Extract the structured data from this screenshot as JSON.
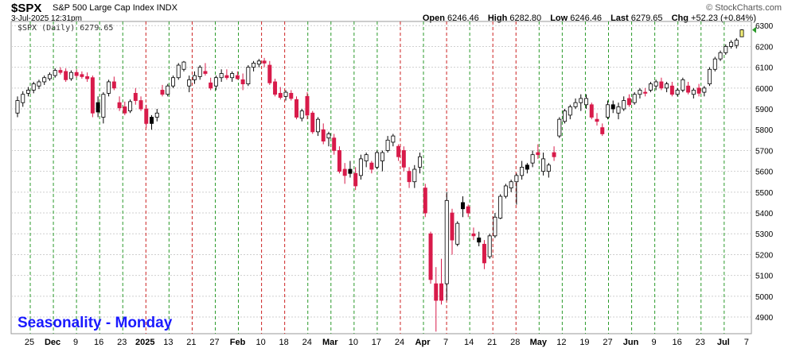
{
  "header": {
    "symbol": "$SPX",
    "description": "S&P 500 Large Cap Index INDX",
    "datetime": "3-Jul-2025 12:31pm",
    "brand": "© StockCharts.com",
    "open_label": "Open",
    "open": "6246.46",
    "high_label": "High",
    "high": "6282.80",
    "low_label": "Low",
    "low": "6246.46",
    "last_label": "Last",
    "last": "6279.65",
    "chg_label": "Chg",
    "chg": "+52.23 (+0.84%)",
    "legend": "$SPX (Daily) 6279.65"
  },
  "annotation": "Seasonality - Monday",
  "colors": {
    "up_candle_fill": "#ffffff",
    "down_candle_fill": "#d81b4a",
    "prior_close_up_fill": "#000000",
    "last_candle_fill": "#f5f07a",
    "monday_green_line": "#2a9a2a",
    "monday_red_line": "#cc2222",
    "annotation_text": "#1a1aff"
  },
  "chart_data": {
    "type": "candlestick",
    "title": "$SPX (Daily) 6279.65",
    "ylim": [
      4820,
      6320
    ],
    "y_ticks": [
      4900,
      5000,
      5100,
      5200,
      5300,
      5400,
      5500,
      5600,
      5700,
      5800,
      5900,
      6000,
      6100,
      6200,
      6300
    ],
    "x_labels": [
      "25",
      "Dec",
      "9",
      "16",
      "23",
      "2025",
      "13",
      "21",
      "27",
      "Feb",
      "10",
      "18",
      "24",
      "Mar",
      "10",
      "17",
      "24",
      "Apr",
      "7",
      "14",
      "21",
      "28",
      "May",
      "12",
      "19",
      "27",
      "Jun",
      "9",
      "16",
      "23",
      "Jul",
      "7"
    ],
    "x_label_bold": [
      "Dec",
      "2025",
      "Feb",
      "Mar",
      "Apr",
      "May",
      "Jun",
      "Jul"
    ],
    "monday_seasonality": [
      "green",
      "green",
      "green",
      "green",
      "green",
      "red",
      "green",
      "red",
      "green",
      "green",
      "red",
      "red",
      "green",
      "green",
      "green",
      "green",
      "red",
      "green",
      "red",
      "green",
      "red",
      "red",
      "green",
      "green",
      "green",
      "green",
      "green",
      "green",
      "green",
      "green",
      "green"
    ],
    "candles": [
      {
        "o": 5880,
        "h": 5960,
        "l": 5860,
        "c": 5940,
        "t": "up"
      },
      {
        "o": 5930,
        "h": 5985,
        "l": 5910,
        "c": 5970,
        "t": "up"
      },
      {
        "o": 5975,
        "h": 6005,
        "l": 5960,
        "c": 5990,
        "t": "up"
      },
      {
        "o": 5990,
        "h": 6030,
        "l": 5975,
        "c": 6020,
        "t": "up"
      },
      {
        "o": 6010,
        "h": 6040,
        "l": 5995,
        "c": 6030,
        "t": "up"
      },
      {
        "o": 6030,
        "h": 6060,
        "l": 6015,
        "c": 6050,
        "t": "up"
      },
      {
        "o": 6045,
        "h": 6075,
        "l": 6035,
        "c": 6065,
        "t": "up"
      },
      {
        "o": 6060,
        "h": 6095,
        "l": 6050,
        "c": 6085,
        "t": "up"
      },
      {
        "o": 6085,
        "h": 6100,
        "l": 6065,
        "c": 6075,
        "t": "down"
      },
      {
        "o": 6080,
        "h": 6095,
        "l": 6030,
        "c": 6040,
        "t": "down"
      },
      {
        "o": 6045,
        "h": 6085,
        "l": 6035,
        "c": 6075,
        "t": "up"
      },
      {
        "o": 6075,
        "h": 6090,
        "l": 6050,
        "c": 6060,
        "t": "down"
      },
      {
        "o": 6065,
        "h": 6080,
        "l": 6045,
        "c": 6055,
        "t": "down"
      },
      {
        "o": 6055,
        "h": 6075,
        "l": 6030,
        "c": 6045,
        "t": "down"
      },
      {
        "o": 6050,
        "h": 6060,
        "l": 5860,
        "c": 5880,
        "t": "down"
      },
      {
        "o": 5885,
        "h": 5960,
        "l": 5860,
        "c": 5930,
        "t": "prior_up"
      },
      {
        "o": 5860,
        "h": 5980,
        "l": 5830,
        "c": 5970,
        "t": "up"
      },
      {
        "o": 5975,
        "h": 6040,
        "l": 5960,
        "c": 6030,
        "t": "up"
      },
      {
        "o": 6030,
        "h": 6055,
        "l": 5990,
        "c": 6000,
        "t": "down"
      },
      {
        "o": 5930,
        "h": 5960,
        "l": 5890,
        "c": 5905,
        "t": "down"
      },
      {
        "o": 5910,
        "h": 5935,
        "l": 5870,
        "c": 5880,
        "t": "down"
      },
      {
        "o": 5890,
        "h": 5945,
        "l": 5880,
        "c": 5935,
        "t": "up"
      },
      {
        "o": 5975,
        "h": 6000,
        "l": 5920,
        "c": 5940,
        "t": "down"
      },
      {
        "o": 5940,
        "h": 5960,
        "l": 5890,
        "c": 5900,
        "t": "down"
      },
      {
        "o": 5900,
        "h": 5920,
        "l": 5810,
        "c": 5830,
        "t": "down"
      },
      {
        "o": 5830,
        "h": 5870,
        "l": 5800,
        "c": 5860,
        "t": "prior_up"
      },
      {
        "o": 5860,
        "h": 5900,
        "l": 5840,
        "c": 5880,
        "t": "up"
      },
      {
        "o": 5990,
        "h": 6015,
        "l": 5960,
        "c": 5970,
        "t": "down"
      },
      {
        "o": 5970,
        "h": 6020,
        "l": 5960,
        "c": 6010,
        "t": "up"
      },
      {
        "o": 6010,
        "h": 6060,
        "l": 6000,
        "c": 6050,
        "t": "up"
      },
      {
        "o": 6050,
        "h": 6120,
        "l": 6040,
        "c": 6110,
        "t": "up"
      },
      {
        "o": 6090,
        "h": 6130,
        "l": 6080,
        "c": 6125,
        "t": "up"
      },
      {
        "o": 6010,
        "h": 6060,
        "l": 5980,
        "c": 6040,
        "t": "up"
      },
      {
        "o": 6040,
        "h": 6080,
        "l": 6020,
        "c": 6060,
        "t": "up"
      },
      {
        "o": 6055,
        "h": 6110,
        "l": 6040,
        "c": 6100,
        "t": "up"
      },
      {
        "o": 6080,
        "h": 6120,
        "l": 6060,
        "c": 6070,
        "t": "down"
      },
      {
        "o": 6025,
        "h": 6050,
        "l": 5990,
        "c": 6000,
        "t": "down"
      },
      {
        "o": 6010,
        "h": 6060,
        "l": 5990,
        "c": 6050,
        "t": "up"
      },
      {
        "o": 6050,
        "h": 6090,
        "l": 6030,
        "c": 6070,
        "t": "up"
      },
      {
        "o": 6060,
        "h": 6090,
        "l": 6040,
        "c": 6050,
        "t": "down"
      },
      {
        "o": 6050,
        "h": 6080,
        "l": 6030,
        "c": 6070,
        "t": "up"
      },
      {
        "o": 6060,
        "h": 6080,
        "l": 6040,
        "c": 6045,
        "t": "down"
      },
      {
        "o": 6040,
        "h": 6070,
        "l": 5990,
        "c": 6020,
        "t": "down"
      },
      {
        "o": 6020,
        "h": 6110,
        "l": 6010,
        "c": 6100,
        "t": "up"
      },
      {
        "o": 6100,
        "h": 6130,
        "l": 6080,
        "c": 6120,
        "t": "up"
      },
      {
        "o": 6115,
        "h": 6140,
        "l": 6100,
        "c": 6130,
        "t": "up"
      },
      {
        "o": 6130,
        "h": 6145,
        "l": 6100,
        "c": 6120,
        "t": "down"
      },
      {
        "o": 6110,
        "h": 6130,
        "l": 6015,
        "c": 6025,
        "t": "down"
      },
      {
        "o": 6030,
        "h": 6045,
        "l": 5960,
        "c": 5970,
        "t": "down"
      },
      {
        "o": 5975,
        "h": 6005,
        "l": 5945,
        "c": 5955,
        "t": "down"
      },
      {
        "o": 5960,
        "h": 5990,
        "l": 5940,
        "c": 5980,
        "t": "up"
      },
      {
        "o": 5975,
        "h": 5990,
        "l": 5940,
        "c": 5950,
        "t": "down"
      },
      {
        "o": 5945,
        "h": 5960,
        "l": 5850,
        "c": 5860,
        "t": "down"
      },
      {
        "o": 5855,
        "h": 5900,
        "l": 5840,
        "c": 5890,
        "t": "up"
      },
      {
        "o": 5960,
        "h": 5980,
        "l": 5850,
        "c": 5870,
        "t": "down"
      },
      {
        "o": 5880,
        "h": 5890,
        "l": 5780,
        "c": 5790,
        "t": "down"
      },
      {
        "o": 5790,
        "h": 5860,
        "l": 5770,
        "c": 5850,
        "t": "up"
      },
      {
        "o": 5800,
        "h": 5830,
        "l": 5730,
        "c": 5745,
        "t": "down"
      },
      {
        "o": 5760,
        "h": 5790,
        "l": 5720,
        "c": 5780,
        "t": "up"
      },
      {
        "o": 5760,
        "h": 5780,
        "l": 5680,
        "c": 5700,
        "t": "down"
      },
      {
        "o": 5700,
        "h": 5720,
        "l": 5590,
        "c": 5600,
        "t": "down"
      },
      {
        "o": 5610,
        "h": 5640,
        "l": 5540,
        "c": 5580,
        "t": "down"
      },
      {
        "o": 5610,
        "h": 5650,
        "l": 5570,
        "c": 5590,
        "t": "prior_up"
      },
      {
        "o": 5590,
        "h": 5620,
        "l": 5510,
        "c": 5530,
        "t": "down"
      },
      {
        "o": 5580,
        "h": 5680,
        "l": 5560,
        "c": 5660,
        "t": "up"
      },
      {
        "o": 5650,
        "h": 5690,
        "l": 5620,
        "c": 5680,
        "t": "up"
      },
      {
        "o": 5640,
        "h": 5650,
        "l": 5590,
        "c": 5610,
        "t": "down"
      },
      {
        "o": 5620,
        "h": 5700,
        "l": 5610,
        "c": 5690,
        "t": "up"
      },
      {
        "o": 5650,
        "h": 5700,
        "l": 5600,
        "c": 5690,
        "t": "up"
      },
      {
        "o": 5700,
        "h": 5770,
        "l": 5690,
        "c": 5750,
        "t": "up"
      },
      {
        "o": 5740,
        "h": 5780,
        "l": 5720,
        "c": 5770,
        "t": "up"
      },
      {
        "o": 5720,
        "h": 5730,
        "l": 5650,
        "c": 5670,
        "t": "down"
      },
      {
        "o": 5700,
        "h": 5720,
        "l": 5600,
        "c": 5620,
        "t": "down"
      },
      {
        "o": 5600,
        "h": 5620,
        "l": 5520,
        "c": 5550,
        "t": "down"
      },
      {
        "o": 5550,
        "h": 5630,
        "l": 5520,
        "c": 5610,
        "t": "up"
      },
      {
        "o": 5620,
        "h": 5690,
        "l": 5590,
        "c": 5670,
        "t": "up"
      },
      {
        "o": 5520,
        "h": 5540,
        "l": 5380,
        "c": 5400,
        "t": "down"
      },
      {
        "o": 5300,
        "h": 5310,
        "l": 5060,
        "c": 5080,
        "t": "down"
      },
      {
        "o": 5060,
        "h": 5140,
        "l": 4830,
        "c": 4980,
        "t": "down"
      },
      {
        "o": 4980,
        "h": 5180,
        "l": 4960,
        "c": 5060,
        "t": "down"
      },
      {
        "o": 5060,
        "h": 5500,
        "l": 4980,
        "c": 5460,
        "t": "up"
      },
      {
        "o": 5400,
        "h": 5420,
        "l": 5200,
        "c": 5270,
        "t": "down"
      },
      {
        "o": 5250,
        "h": 5360,
        "l": 5240,
        "c": 5350,
        "t": "up"
      },
      {
        "o": 5420,
        "h": 5480,
        "l": 5380,
        "c": 5450,
        "t": "prior_up"
      },
      {
        "o": 5430,
        "h": 5440,
        "l": 5380,
        "c": 5400,
        "t": "down"
      },
      {
        "o": 5300,
        "h": 5330,
        "l": 5270,
        "c": 5290,
        "t": "down"
      },
      {
        "o": 5260,
        "h": 5310,
        "l": 5240,
        "c": 5280,
        "t": "prior_up"
      },
      {
        "o": 5250,
        "h": 5270,
        "l": 5130,
        "c": 5160,
        "t": "down"
      },
      {
        "o": 5190,
        "h": 5300,
        "l": 5180,
        "c": 5290,
        "t": "up"
      },
      {
        "o": 5290,
        "h": 5400,
        "l": 5280,
        "c": 5380,
        "t": "up"
      },
      {
        "o": 5375,
        "h": 5490,
        "l": 5370,
        "c": 5480,
        "t": "up"
      },
      {
        "o": 5480,
        "h": 5540,
        "l": 5470,
        "c": 5530,
        "t": "up"
      },
      {
        "o": 5520,
        "h": 5560,
        "l": 5500,
        "c": 5550,
        "t": "up"
      },
      {
        "o": 5550,
        "h": 5590,
        "l": 5440,
        "c": 5580,
        "t": "up"
      },
      {
        "o": 5580,
        "h": 5650,
        "l": 5560,
        "c": 5620,
        "t": "up"
      },
      {
        "o": 5610,
        "h": 5640,
        "l": 5590,
        "c": 5630,
        "t": "prior_up"
      },
      {
        "o": 5640,
        "h": 5700,
        "l": 5620,
        "c": 5680,
        "t": "up"
      },
      {
        "o": 5690,
        "h": 5730,
        "l": 5660,
        "c": 5680,
        "t": "down"
      },
      {
        "o": 5660,
        "h": 5690,
        "l": 5580,
        "c": 5600,
        "t": "up"
      },
      {
        "o": 5600,
        "h": 5640,
        "l": 5570,
        "c": 5630,
        "t": "up"
      },
      {
        "o": 5690,
        "h": 5720,
        "l": 5650,
        "c": 5670,
        "t": "down"
      },
      {
        "o": 5770,
        "h": 5860,
        "l": 5760,
        "c": 5850,
        "t": "up"
      },
      {
        "o": 5840,
        "h": 5900,
        "l": 5830,
        "c": 5890,
        "t": "up"
      },
      {
        "o": 5870,
        "h": 5920,
        "l": 5850,
        "c": 5910,
        "t": "up"
      },
      {
        "o": 5910,
        "h": 5950,
        "l": 5900,
        "c": 5930,
        "t": "up"
      },
      {
        "o": 5930,
        "h": 5970,
        "l": 5890,
        "c": 5950,
        "t": "up"
      },
      {
        "o": 5950,
        "h": 5970,
        "l": 5900,
        "c": 5920,
        "t": "up"
      },
      {
        "o": 5920,
        "h": 5930,
        "l": 5850,
        "c": 5860,
        "t": "down"
      },
      {
        "o": 5850,
        "h": 5880,
        "l": 5820,
        "c": 5840,
        "t": "down"
      },
      {
        "o": 5810,
        "h": 5830,
        "l": 5770,
        "c": 5780,
        "t": "down"
      },
      {
        "o": 5860,
        "h": 5940,
        "l": 5850,
        "c": 5920,
        "t": "up"
      },
      {
        "o": 5900,
        "h": 5940,
        "l": 5880,
        "c": 5920,
        "t": "prior_up"
      },
      {
        "o": 5880,
        "h": 5930,
        "l": 5850,
        "c": 5910,
        "t": "up"
      },
      {
        "o": 5900,
        "h": 5960,
        "l": 5890,
        "c": 5940,
        "t": "up"
      },
      {
        "o": 5950,
        "h": 5970,
        "l": 5910,
        "c": 5920,
        "t": "down"
      },
      {
        "o": 5930,
        "h": 5980,
        "l": 5920,
        "c": 5970,
        "t": "up"
      },
      {
        "o": 5970,
        "h": 6000,
        "l": 5950,
        "c": 5990,
        "t": "up"
      },
      {
        "o": 5980,
        "h": 6000,
        "l": 5960,
        "c": 5975,
        "t": "down"
      },
      {
        "o": 5990,
        "h": 6030,
        "l": 5980,
        "c": 6020,
        "t": "up"
      },
      {
        "o": 6010,
        "h": 6040,
        "l": 5990,
        "c": 6030,
        "t": "up"
      },
      {
        "o": 6030,
        "h": 6050,
        "l": 5990,
        "c": 6000,
        "t": "down"
      },
      {
        "o": 6000,
        "h": 6030,
        "l": 5980,
        "c": 6020,
        "t": "up"
      },
      {
        "o": 6010,
        "h": 6030,
        "l": 5960,
        "c": 5970,
        "t": "down"
      },
      {
        "o": 5970,
        "h": 6000,
        "l": 5960,
        "c": 5990,
        "t": "up"
      },
      {
        "o": 5990,
        "h": 6050,
        "l": 5980,
        "c": 6040,
        "t": "up"
      },
      {
        "o": 6010,
        "h": 6030,
        "l": 5970,
        "c": 5980,
        "t": "down"
      },
      {
        "o": 5970,
        "h": 6000,
        "l": 5950,
        "c": 5990,
        "t": "up"
      },
      {
        "o": 6000,
        "h": 6020,
        "l": 5960,
        "c": 5975,
        "t": "down"
      },
      {
        "o": 5980,
        "h": 6010,
        "l": 5960,
        "c": 6000,
        "t": "up"
      },
      {
        "o": 6020,
        "h": 6100,
        "l": 6010,
        "c": 6090,
        "t": "up"
      },
      {
        "o": 6090,
        "h": 6150,
        "l": 6080,
        "c": 6140,
        "t": "up"
      },
      {
        "o": 6140,
        "h": 6180,
        "l": 6130,
        "c": 6170,
        "t": "up"
      },
      {
        "o": 6170,
        "h": 6210,
        "l": 6160,
        "c": 6200,
        "t": "up"
      },
      {
        "o": 6200,
        "h": 6230,
        "l": 6190,
        "c": 6220,
        "t": "up"
      },
      {
        "o": 6205,
        "h": 6240,
        "l": 6190,
        "c": 6230,
        "t": "up"
      },
      {
        "o": 6246.46,
        "h": 6282.8,
        "l": 6246.46,
        "c": 6279.65,
        "t": "last"
      }
    ]
  }
}
